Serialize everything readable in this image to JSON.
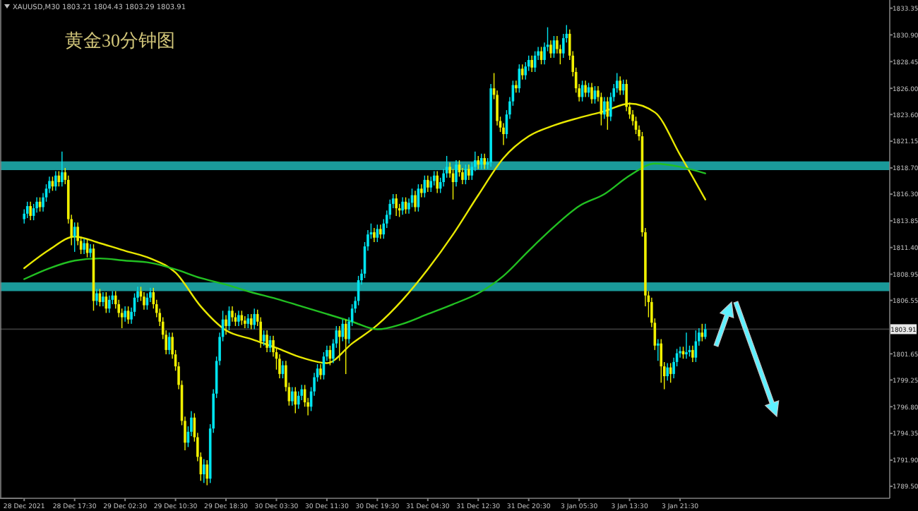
{
  "chart_data": {
    "type": "candlestick",
    "title": "黄金30分钟图",
    "subtitle": "XAUUSD,M30 1803.21 1804.43 1803.29 1803.91",
    "categories": [
      "28 Dec 2021",
      null,
      null,
      null,
      null,
      null,
      null,
      null,
      null,
      null,
      null,
      null,
      null,
      null,
      null,
      null,
      "28 Dec 17:30",
      null,
      null,
      null,
      null,
      null,
      null,
      null,
      null,
      null,
      null,
      null,
      null,
      null,
      null,
      null,
      "29 Dec 02:30",
      null,
      null,
      null,
      null,
      null,
      null,
      null,
      null,
      null,
      null,
      null,
      null,
      null,
      null,
      null,
      "29 Dec 10:30",
      null,
      null,
      null,
      null,
      null,
      null,
      null,
      null,
      null,
      null,
      null,
      null,
      null,
      null,
      null,
      "29 Dec 18:30",
      null,
      null,
      null,
      null,
      null,
      null,
      null,
      null,
      null,
      null,
      null,
      null,
      null,
      null,
      null,
      "30 Dec 03:30",
      null,
      null,
      null,
      null,
      null,
      null,
      null,
      null,
      null,
      null,
      null,
      null,
      null,
      null,
      null,
      "30 Dec 11:30",
      null,
      null,
      null,
      null,
      null,
      null,
      null,
      null,
      null,
      null,
      null,
      null,
      null,
      null,
      null,
      "30 Dec 19:30",
      null,
      null,
      null,
      null,
      null,
      null,
      null,
      null,
      null,
      null,
      null,
      null,
      null,
      null,
      null,
      "31 Dec 04:30",
      null,
      null,
      null,
      null,
      null,
      null,
      null,
      null,
      null,
      null,
      null,
      null,
      null,
      null,
      null,
      "31 Dec 12:30",
      null,
      null,
      null,
      null,
      null,
      null,
      null,
      null,
      null,
      null,
      null,
      null,
      null,
      null,
      null,
      "31 Dec 20:30",
      null,
      null,
      null,
      null,
      null,
      null,
      null,
      null,
      null,
      null,
      null,
      null,
      null,
      null,
      null,
      "3 Jan 05:30",
      null,
      null,
      null,
      null,
      null,
      null,
      null,
      null,
      null,
      null,
      null,
      null,
      null,
      null,
      null,
      "3 Jan 13:30",
      null,
      null,
      null,
      null,
      null,
      null,
      null,
      null,
      null,
      null,
      null,
      null,
      null,
      null,
      null,
      "3 Jan 21:30",
      null,
      null,
      null,
      null,
      null,
      null,
      null,
      null,
      null,
      null,
      null,
      null,
      null,
      null,
      null,
      null,
      null,
      null,
      null,
      null,
      null,
      null,
      null,
      null,
      null,
      null,
      null,
      null,
      null,
      null,
      null,
      null,
      null,
      null,
      null,
      null,
      null,
      null,
      null,
      null,
      null,
      null,
      null,
      null,
      null,
      null,
      null,
      null,
      null,
      null,
      null,
      null,
      null,
      null,
      null,
      null,
      null,
      null,
      null,
      null,
      null,
      null,
      null,
      null,
      null,
      null
    ],
    "ohlc": [
      [
        1814.0,
        1814.9,
        1813.6,
        1814.5
      ],
      [
        1814.5,
        1815.6,
        1814.1,
        1815.2
      ],
      [
        1815.2,
        1815.6,
        1813.9,
        1814.3
      ],
      [
        1814.3,
        1815.4,
        1813.9,
        1815.0
      ],
      [
        1815.0,
        1816.0,
        1814.6,
        1815.6
      ],
      [
        1815.6,
        1816.0,
        1814.7,
        1815.1
      ],
      [
        1815.1,
        1816.4,
        1814.7,
        1816.0
      ],
      [
        1816.0,
        1817.2,
        1815.6,
        1816.8
      ],
      [
        1816.8,
        1817.9,
        1816.4,
        1817.5
      ],
      [
        1817.5,
        1817.9,
        1816.6,
        1817.0
      ],
      [
        1817.0,
        1818.4,
        1816.6,
        1818.0
      ],
      [
        1818.0,
        1818.4,
        1817.0,
        1817.4
      ],
      [
        1817.4,
        1820.2,
        1817.0,
        1818.3
      ],
      [
        1818.3,
        1818.7,
        1817.2,
        1817.6
      ],
      [
        1817.6,
        1818.0,
        1813.6,
        1814.0
      ],
      [
        1814.0,
        1814.4,
        1811.6,
        1812.4
      ],
      [
        1812.4,
        1813.7,
        1811.0,
        1813.3
      ],
      [
        1813.3,
        1813.7,
        1811.6,
        1812.0
      ],
      [
        1812.0,
        1812.4,
        1810.8,
        1811.2
      ],
      [
        1811.2,
        1812.2,
        1810.8,
        1811.8
      ],
      [
        1811.8,
        1812.2,
        1810.5,
        1810.9
      ],
      [
        1810.9,
        1811.7,
        1810.5,
        1811.3
      ],
      [
        1811.3,
        1811.7,
        1805.6,
        1806.5
      ],
      [
        1806.5,
        1807.6,
        1806.1,
        1807.2
      ],
      [
        1807.2,
        1807.6,
        1806.0,
        1806.4
      ],
      [
        1806.4,
        1807.3,
        1806.0,
        1806.9
      ],
      [
        1806.9,
        1807.3,
        1805.4,
        1805.8
      ],
      [
        1805.8,
        1807.0,
        1805.4,
        1806.6
      ],
      [
        1806.6,
        1807.4,
        1806.2,
        1807.0
      ],
      [
        1807.0,
        1807.4,
        1805.8,
        1806.2
      ],
      [
        1806.2,
        1806.6,
        1805.0,
        1805.4
      ],
      [
        1805.4,
        1805.8,
        1804.0,
        1805.0
      ],
      [
        1805.0,
        1806.0,
        1804.6,
        1805.6
      ],
      [
        1805.6,
        1806.0,
        1804.4,
        1804.8
      ],
      [
        1804.8,
        1805.9,
        1804.4,
        1805.5
      ],
      [
        1805.5,
        1807.2,
        1805.1,
        1806.8
      ],
      [
        1806.8,
        1807.8,
        1806.4,
        1807.4
      ],
      [
        1807.4,
        1807.8,
        1806.5,
        1806.9
      ],
      [
        1806.9,
        1807.3,
        1805.7,
        1806.1
      ],
      [
        1806.1,
        1807.2,
        1805.7,
        1806.8
      ],
      [
        1806.8,
        1807.7,
        1806.4,
        1807.3
      ],
      [
        1807.3,
        1807.7,
        1805.8,
        1806.2
      ],
      [
        1806.2,
        1806.6,
        1805.0,
        1805.4
      ],
      [
        1805.4,
        1805.8,
        1804.2,
        1804.6
      ],
      [
        1804.6,
        1805.0,
        1803.0,
        1803.4
      ],
      [
        1803.4,
        1803.8,
        1801.6,
        1802.0
      ],
      [
        1802.0,
        1803.6,
        1801.6,
        1803.2
      ],
      [
        1803.2,
        1803.6,
        1801.2,
        1801.6
      ],
      [
        1801.6,
        1802.0,
        1800.1,
        1800.5
      ],
      [
        1800.5,
        1800.9,
        1798.4,
        1798.8
      ],
      [
        1798.8,
        1799.2,
        1795.1,
        1795.5
      ],
      [
        1795.5,
        1795.9,
        1792.8,
        1793.5
      ],
      [
        1793.5,
        1795.0,
        1793.1,
        1794.5
      ],
      [
        1794.5,
        1796.4,
        1794.1,
        1795.8
      ],
      [
        1795.8,
        1796.2,
        1793.6,
        1794.0
      ],
      [
        1794.0,
        1794.4,
        1791.8,
        1792.2
      ],
      [
        1792.2,
        1792.6,
        1790.0,
        1790.6
      ],
      [
        1790.6,
        1792.0,
        1789.8,
        1791.5
      ],
      [
        1791.5,
        1791.9,
        1789.6,
        1790.2
      ],
      [
        1790.2,
        1795.2,
        1789.8,
        1794.8
      ],
      [
        1794.8,
        1798.4,
        1794.4,
        1798.0
      ],
      [
        1798.0,
        1801.4,
        1797.6,
        1801.0
      ],
      [
        1801.0,
        1803.6,
        1800.6,
        1803.2
      ],
      [
        1803.2,
        1805.6,
        1802.8,
        1804.8
      ],
      [
        1804.8,
        1805.2,
        1803.4,
        1804.2
      ],
      [
        1804.2,
        1806.0,
        1803.8,
        1805.6
      ],
      [
        1805.6,
        1806.0,
        1804.6,
        1805.0
      ],
      [
        1805.0,
        1805.4,
        1804.2,
        1804.6
      ],
      [
        1804.6,
        1805.6,
        1804.2,
        1805.2
      ],
      [
        1805.2,
        1805.6,
        1804.3,
        1804.7
      ],
      [
        1804.7,
        1805.1,
        1804.0,
        1804.4
      ],
      [
        1804.4,
        1805.3,
        1804.0,
        1804.9
      ],
      [
        1804.9,
        1805.3,
        1803.9,
        1804.3
      ],
      [
        1804.3,
        1805.8,
        1803.9,
        1805.3
      ],
      [
        1805.3,
        1805.7,
        1804.2,
        1804.6
      ],
      [
        1804.6,
        1805.0,
        1802.2,
        1802.8
      ],
      [
        1802.8,
        1803.8,
        1802.4,
        1803.4
      ],
      [
        1803.4,
        1803.8,
        1801.8,
        1802.2
      ],
      [
        1802.2,
        1803.3,
        1801.8,
        1802.9
      ],
      [
        1802.9,
        1803.3,
        1801.4,
        1801.8
      ],
      [
        1801.8,
        1802.2,
        1800.2,
        1801.2
      ],
      [
        1801.2,
        1801.6,
        1799.4,
        1799.8
      ],
      [
        1799.8,
        1801.0,
        1799.4,
        1800.6
      ],
      [
        1800.6,
        1801.0,
        1798.2,
        1798.6
      ],
      [
        1798.6,
        1799.0,
        1796.9,
        1797.3
      ],
      [
        1797.3,
        1798.6,
        1796.9,
        1798.2
      ],
      [
        1798.2,
        1798.6,
        1796.2,
        1797.0
      ],
      [
        1797.0,
        1798.2,
        1796.6,
        1797.8
      ],
      [
        1797.8,
        1798.8,
        1797.4,
        1798.4
      ],
      [
        1798.4,
        1798.8,
        1796.8,
        1797.2
      ],
      [
        1797.2,
        1797.6,
        1796.0,
        1796.8
      ],
      [
        1796.8,
        1798.6,
        1796.4,
        1798.2
      ],
      [
        1798.2,
        1799.9,
        1797.8,
        1799.5
      ],
      [
        1799.5,
        1800.7,
        1799.1,
        1800.3
      ],
      [
        1800.3,
        1800.7,
        1799.3,
        1799.7
      ],
      [
        1799.7,
        1801.8,
        1799.3,
        1801.4
      ],
      [
        1801.4,
        1802.4,
        1801.0,
        1802.0
      ],
      [
        1802.0,
        1802.4,
        1800.6,
        1801.2
      ],
      [
        1801.2,
        1803.0,
        1800.8,
        1802.6
      ],
      [
        1802.6,
        1804.2,
        1802.2,
        1803.8
      ],
      [
        1803.8,
        1804.2,
        1801.0,
        1803.2
      ],
      [
        1803.2,
        1804.8,
        1802.8,
        1804.4
      ],
      [
        1804.4,
        1804.8,
        1799.8,
        1803.0
      ],
      [
        1803.0,
        1805.0,
        1802.6,
        1804.6
      ],
      [
        1804.6,
        1806.2,
        1804.2,
        1805.8
      ],
      [
        1805.8,
        1806.9,
        1805.4,
        1806.5
      ],
      [
        1806.5,
        1808.8,
        1806.1,
        1808.4
      ],
      [
        1808.4,
        1809.4,
        1808.0,
        1809.0
      ],
      [
        1809.0,
        1811.9,
        1808.6,
        1811.5
      ],
      [
        1811.5,
        1813.0,
        1811.1,
        1812.6
      ],
      [
        1812.6,
        1813.6,
        1812.2,
        1812.8
      ],
      [
        1812.8,
        1813.2,
        1811.9,
        1812.3
      ],
      [
        1812.3,
        1813.5,
        1811.9,
        1813.1
      ],
      [
        1813.1,
        1813.5,
        1812.2,
        1812.6
      ],
      [
        1812.6,
        1814.0,
        1812.2,
        1813.6
      ],
      [
        1813.6,
        1814.8,
        1813.2,
        1814.4
      ],
      [
        1814.4,
        1815.8,
        1814.0,
        1815.4
      ],
      [
        1815.4,
        1816.3,
        1815.0,
        1815.9
      ],
      [
        1815.9,
        1816.3,
        1814.3,
        1815.0
      ],
      [
        1815.0,
        1815.4,
        1814.2,
        1814.8
      ],
      [
        1814.8,
        1816.0,
        1814.4,
        1815.6
      ],
      [
        1815.6,
        1816.0,
        1814.5,
        1814.9
      ],
      [
        1814.9,
        1815.9,
        1814.5,
        1815.5
      ],
      [
        1815.5,
        1816.8,
        1815.1,
        1816.2
      ],
      [
        1816.2,
        1816.6,
        1814.7,
        1815.1
      ],
      [
        1815.1,
        1817.2,
        1814.7,
        1816.8
      ],
      [
        1816.8,
        1817.2,
        1816.0,
        1816.4
      ],
      [
        1816.4,
        1818.0,
        1816.0,
        1817.6
      ],
      [
        1817.6,
        1818.0,
        1816.5,
        1816.9
      ],
      [
        1816.9,
        1817.9,
        1816.5,
        1817.5
      ],
      [
        1817.5,
        1818.4,
        1817.1,
        1818.0
      ],
      [
        1818.0,
        1818.4,
        1816.4,
        1816.8
      ],
      [
        1816.8,
        1817.8,
        1816.4,
        1817.4
      ],
      [
        1817.4,
        1818.6,
        1817.0,
        1818.2
      ],
      [
        1818.2,
        1819.8,
        1817.8,
        1818.8
      ],
      [
        1818.8,
        1819.2,
        1817.8,
        1818.2
      ],
      [
        1818.2,
        1818.6,
        1815.8,
        1817.4
      ],
      [
        1817.4,
        1819.4,
        1817.0,
        1819.0
      ],
      [
        1819.0,
        1819.4,
        1817.9,
        1818.3
      ],
      [
        1818.3,
        1818.7,
        1817.2,
        1817.6
      ],
      [
        1817.6,
        1819.0,
        1817.2,
        1818.6
      ],
      [
        1818.6,
        1819.0,
        1817.6,
        1818.0
      ],
      [
        1818.0,
        1819.2,
        1817.6,
        1818.8
      ],
      [
        1818.8,
        1820.2,
        1818.4,
        1819.4
      ],
      [
        1819.4,
        1819.8,
        1818.6,
        1819.0
      ],
      [
        1819.0,
        1820.0,
        1818.6,
        1819.6
      ],
      [
        1819.6,
        1820.0,
        1818.6,
        1819.0
      ],
      [
        1819.0,
        1819.6,
        1818.6,
        1819.2
      ],
      [
        1819.2,
        1826.4,
        1818.8,
        1826.0
      ],
      [
        1826.0,
        1827.4,
        1825.0,
        1825.4
      ],
      [
        1825.4,
        1825.8,
        1822.6,
        1823.0
      ],
      [
        1823.0,
        1823.4,
        1822.0,
        1822.4
      ],
      [
        1822.4,
        1822.8,
        1820.8,
        1821.8
      ],
      [
        1821.8,
        1824.0,
        1821.4,
        1823.6
      ],
      [
        1823.6,
        1825.2,
        1823.2,
        1824.8
      ],
      [
        1824.8,
        1826.7,
        1824.4,
        1826.3
      ],
      [
        1826.3,
        1826.7,
        1825.6,
        1826.0
      ],
      [
        1826.0,
        1828.2,
        1825.6,
        1827.8
      ],
      [
        1827.8,
        1828.2,
        1826.8,
        1827.2
      ],
      [
        1827.2,
        1828.4,
        1826.8,
        1828.0
      ],
      [
        1828.0,
        1829.0,
        1827.6,
        1828.6
      ],
      [
        1828.6,
        1829.0,
        1827.5,
        1827.9
      ],
      [
        1827.9,
        1829.4,
        1827.5,
        1829.0
      ],
      [
        1829.0,
        1829.8,
        1828.6,
        1829.4
      ],
      [
        1829.4,
        1829.8,
        1828.2,
        1828.6
      ],
      [
        1828.6,
        1830.2,
        1828.2,
        1829.8
      ],
      [
        1829.8,
        1831.6,
        1829.4,
        1830.0
      ],
      [
        1830.0,
        1830.4,
        1828.8,
        1829.2
      ],
      [
        1829.2,
        1830.8,
        1828.8,
        1830.4
      ],
      [
        1830.4,
        1830.8,
        1829.2,
        1829.6
      ],
      [
        1829.6,
        1830.0,
        1828.2,
        1829.2
      ],
      [
        1829.2,
        1831.0,
        1828.8,
        1830.6
      ],
      [
        1830.6,
        1831.8,
        1830.2,
        1831.0
      ],
      [
        1831.0,
        1831.4,
        1828.6,
        1829.0
      ],
      [
        1829.0,
        1829.4,
        1827.1,
        1827.5
      ],
      [
        1827.5,
        1827.9,
        1825.6,
        1826.0
      ],
      [
        1826.0,
        1826.4,
        1824.8,
        1825.2
      ],
      [
        1825.2,
        1826.7,
        1824.8,
        1826.3
      ],
      [
        1826.3,
        1826.7,
        1825.2,
        1825.6
      ],
      [
        1825.6,
        1826.5,
        1825.2,
        1826.1
      ],
      [
        1826.1,
        1826.5,
        1824.6,
        1825.0
      ],
      [
        1825.0,
        1826.2,
        1824.6,
        1825.8
      ],
      [
        1825.8,
        1826.2,
        1824.8,
        1825.2
      ],
      [
        1825.2,
        1825.6,
        1822.6,
        1823.6
      ],
      [
        1823.6,
        1825.2,
        1823.2,
        1824.8
      ],
      [
        1824.8,
        1825.2,
        1822.2,
        1823.4
      ],
      [
        1823.4,
        1825.6,
        1823.0,
        1825.2
      ],
      [
        1825.2,
        1826.4,
        1824.8,
        1826.0
      ],
      [
        1826.0,
        1827.4,
        1825.6,
        1826.7
      ],
      [
        1826.7,
        1827.1,
        1825.4,
        1825.8
      ],
      [
        1825.8,
        1826.8,
        1825.4,
        1826.4
      ],
      [
        1826.4,
        1826.8,
        1823.9,
        1824.3
      ],
      [
        1824.3,
        1824.7,
        1823.2,
        1823.6
      ],
      [
        1823.6,
        1824.0,
        1822.6,
        1823.0
      ],
      [
        1823.0,
        1823.4,
        1821.8,
        1822.2
      ],
      [
        1822.2,
        1822.6,
        1821.2,
        1821.6
      ],
      [
        1821.6,
        1822.0,
        1812.4,
        1812.8
      ],
      [
        1812.8,
        1813.2,
        1806.0,
        1807.0
      ],
      [
        1807.0,
        1807.4,
        1805.0,
        1806.4
      ],
      [
        1806.4,
        1806.8,
        1804.1,
        1804.5
      ],
      [
        1804.5,
        1804.9,
        1802.0,
        1802.4
      ],
      [
        1802.4,
        1803.0,
        1801.0,
        1802.6
      ],
      [
        1802.6,
        1803.0,
        1799.0,
        1800.5
      ],
      [
        1800.5,
        1800.9,
        1798.4,
        1799.6
      ],
      [
        1799.6,
        1800.8,
        1799.2,
        1800.4
      ],
      [
        1800.4,
        1800.8,
        1799.0,
        1799.8
      ],
      [
        1799.8,
        1801.3,
        1799.4,
        1800.9
      ],
      [
        1800.9,
        1802.1,
        1800.5,
        1801.7
      ],
      [
        1801.7,
        1802.3,
        1801.3,
        1801.9
      ],
      [
        1801.9,
        1802.3,
        1801.2,
        1801.6
      ],
      [
        1801.6,
        1803.6,
        1801.2,
        1801.8
      ],
      [
        1801.8,
        1802.4,
        1801.4,
        1802.0
      ],
      [
        1802.0,
        1802.4,
        1800.9,
        1801.3
      ],
      [
        1801.3,
        1803.8,
        1800.9,
        1802.8
      ],
      [
        1802.8,
        1804.0,
        1802.4,
        1803.6
      ],
      [
        1803.6,
        1804.4,
        1802.8,
        1803.2
      ],
      [
        1803.2,
        1804.4,
        1803.0,
        1803.91
      ],
      null,
      null,
      null,
      null,
      null,
      null,
      null,
      null,
      null,
      null,
      null,
      null,
      null,
      null,
      null,
      null,
      null,
      null,
      null,
      null,
      null,
      null,
      null,
      null,
      null,
      null,
      null,
      null,
      null,
      null,
      null,
      null,
      null,
      null,
      null,
      null,
      null,
      null,
      null,
      null,
      null,
      null,
      null,
      null,
      null,
      null,
      null,
      null,
      null,
      null,
      null,
      null,
      null,
      null,
      null,
      null,
      null,
      null
    ],
    "colors": [
      "#00e5f0",
      "#00e5f0",
      "#f0f000",
      "#00e5f0",
      "#00e5f0",
      "#f0f000",
      "#00e5f0",
      "#00e5f0",
      "#00e5f0",
      "#f0f000",
      "#00e5f0",
      "#f0f000",
      "#00e5f0",
      "#f0f000",
      "#f0f000",
      "#f0f000",
      "#00e5f0",
      "#f0f000",
      "#f0f000",
      "#00e5f0",
      "#f0f000",
      "#00e5f0",
      "#f0f000",
      "#00e5f0",
      "#f0f000",
      "#00e5f0",
      "#f0f000",
      "#00e5f0",
      "#00e5f0",
      "#f0f000",
      "#f0f000",
      "#f0f000",
      "#00e5f0",
      "#f0f000",
      "#00e5f0",
      "#00e5f0",
      "#00e5f0",
      "#f0f000",
      "#f0f000",
      "#00e5f0",
      "#00e5f0",
      "#f0f000",
      "#f0f000",
      "#f0f000",
      "#f0f000",
      "#f0f000",
      "#00e5f0",
      "#f0f000",
      "#f0f000",
      "#f0f000",
      "#f0f000",
      "#f0f000",
      "#00e5f0",
      "#00e5f0",
      "#f0f000",
      "#f0f000",
      "#f0f000",
      "#00e5f0",
      "#f0f000",
      "#00e5f0",
      "#00e5f0",
      "#00e5f0",
      "#00e5f0",
      "#00e5f0",
      "#f0f000",
      "#00e5f0",
      "#f0f000",
      "#f0f000",
      "#00e5f0",
      "#f0f000",
      "#f0f000",
      "#00e5f0",
      "#f0f000",
      "#00e5f0",
      "#f0f000",
      "#f0f000",
      "#00e5f0",
      "#f0f000",
      "#00e5f0",
      "#f0f000",
      "#f0f000",
      "#f0f000",
      "#00e5f0",
      "#f0f000",
      "#f0f000",
      "#00e5f0",
      "#f0f000",
      "#00e5f0",
      "#00e5f0",
      "#f0f000",
      "#f0f000",
      "#00e5f0",
      "#00e5f0",
      "#00e5f0",
      "#f0f000",
      "#00e5f0",
      "#00e5f0",
      "#f0f000",
      "#00e5f0",
      "#00e5f0",
      "#f0f000",
      "#00e5f0",
      "#f0f000",
      "#00e5f0",
      "#00e5f0",
      "#00e5f0",
      "#00e5f0",
      "#00e5f0",
      "#00e5f0",
      "#00e5f0",
      "#00e5f0",
      "#f0f000",
      "#00e5f0",
      "#f0f000",
      "#00e5f0",
      "#00e5f0",
      "#00e5f0",
      "#00e5f0",
      "#f0f000",
      "#f0f000",
      "#00e5f0",
      "#f0f000",
      "#00e5f0",
      "#00e5f0",
      "#f0f000",
      "#00e5f0",
      "#f0f000",
      "#00e5f0",
      "#f0f000",
      "#00e5f0",
      "#00e5f0",
      "#f0f000",
      "#00e5f0",
      "#00e5f0",
      "#00e5f0",
      "#f0f000",
      "#f0f000",
      "#00e5f0",
      "#f0f000",
      "#f0f000",
      "#00e5f0",
      "#f0f000",
      "#00e5f0",
      "#00e5f0",
      "#f0f000",
      "#00e5f0",
      "#f0f000",
      "#00e5f0",
      "#00e5f0",
      "#f0f000",
      "#f0f000",
      "#f0f000",
      "#f0f000",
      "#00e5f0",
      "#00e5f0",
      "#00e5f0",
      "#f0f000",
      "#00e5f0",
      "#f0f000",
      "#00e5f0",
      "#00e5f0",
      "#f0f000",
      "#00e5f0",
      "#00e5f0",
      "#f0f000",
      "#00e5f0",
      "#00e5f0",
      "#f0f000",
      "#00e5f0",
      "#f0f000",
      "#f0f000",
      "#00e5f0",
      "#00e5f0",
      "#f0f000",
      "#f0f000",
      "#f0f000",
      "#f0f000",
      "#00e5f0",
      "#f0f000",
      "#00e5f0",
      "#f0f000",
      "#00e5f0",
      "#f0f000",
      "#f0f000",
      "#00e5f0",
      "#f0f000",
      "#00e5f0",
      "#00e5f0",
      "#00e5f0",
      "#f0f000",
      "#00e5f0",
      "#f0f000",
      "#f0f000",
      "#f0f000",
      "#f0f000",
      "#f0f000",
      "#f0f000",
      "#f0f000",
      "#f0f000",
      "#f0f000",
      "#f0f000",
      "#00e5f0",
      "#f0f000",
      "#f0f000",
      "#00e5f0",
      "#f0f000",
      "#00e5f0",
      "#00e5f0",
      "#00e5f0",
      "#f0f000",
      "#00e5f0",
      "#00e5f0",
      "#f0f000",
      "#00e5f0",
      "#00e5f0",
      "#f0f000",
      "#00e5f0",
      null,
      null,
      null,
      null,
      null,
      null,
      null,
      null,
      null,
      null,
      null,
      null,
      null,
      null,
      null,
      null,
      null,
      null,
      null,
      null,
      null,
      null,
      null,
      null,
      null,
      null,
      null,
      null,
      null,
      null,
      null,
      null,
      null,
      null,
      null,
      null,
      null,
      null,
      null,
      null,
      null,
      null,
      null,
      null,
      null,
      null,
      null,
      null,
      null,
      null,
      null,
      null,
      null,
      null,
      null,
      null,
      null,
      null
    ],
    "series": [
      {
        "type": "line",
        "color": "#e8e800",
        "values": [
          1809.5,
          null,
          null,
          null,
          null,
          null,
          null,
          null,
          1811.2,
          null,
          null,
          null,
          null,
          null,
          null,
          null,
          1812.4,
          null,
          null,
          null,
          null,
          null,
          null,
          null,
          1811.8,
          null,
          null,
          null,
          null,
          null,
          null,
          null,
          1811.1,
          null,
          null,
          null,
          null,
          null,
          null,
          null,
          1810.4,
          null,
          null,
          null,
          null,
          null,
          null,
          null,
          1809.1,
          null,
          null,
          null,
          null,
          null,
          null,
          null,
          1806.0,
          null,
          null,
          null,
          null,
          null,
          null,
          null,
          1803.8,
          null,
          null,
          null,
          null,
          null,
          null,
          null,
          1803.0,
          null,
          null,
          null,
          null,
          null,
          null,
          null,
          1802.2,
          null,
          null,
          null,
          null,
          null,
          null,
          null,
          1801.3,
          null,
          null,
          null,
          null,
          null,
          null,
          null,
          1800.8,
          null,
          null,
          null,
          null,
          null,
          null,
          null,
          1802.6,
          null,
          null,
          null,
          null,
          null,
          null,
          null,
          1804.3,
          null,
          null,
          null,
          null,
          null,
          null,
          null,
          1806.6,
          null,
          null,
          null,
          null,
          null,
          null,
          null,
          1809.4,
          null,
          null,
          null,
          null,
          null,
          null,
          null,
          1812.6,
          null,
          null,
          null,
          null,
          null,
          null,
          null,
          1816.2,
          null,
          null,
          null,
          null,
          null,
          null,
          null,
          1819.6,
          null,
          null,
          null,
          null,
          null,
          null,
          null,
          1821.6,
          null,
          null,
          null,
          null,
          null,
          null,
          null,
          1822.6,
          null,
          null,
          null,
          null,
          null,
          null,
          null,
          1823.3,
          null,
          null,
          null,
          null,
          null,
          null,
          null,
          1823.9,
          null,
          null,
          null,
          null,
          null,
          null,
          null,
          1824.6,
          null,
          null,
          null,
          null,
          null,
          null,
          null,
          1823.8,
          null,
          null,
          null,
          null,
          null,
          null,
          null,
          1819.9,
          null,
          null,
          null,
          null,
          null,
          null,
          null,
          1815.8,
          null,
          null,
          null,
          null,
          null,
          null,
          null,
          null,
          null,
          null,
          null,
          null,
          null,
          null,
          null,
          null,
          null,
          null,
          null,
          null,
          null,
          null,
          null,
          null,
          null,
          null,
          null,
          null,
          null,
          null,
          null,
          null,
          null,
          null,
          null,
          null,
          null,
          null,
          null,
          null,
          null,
          null,
          null,
          null,
          null,
          null,
          null,
          null,
          null,
          null,
          null,
          null,
          null,
          null,
          null,
          null,
          null,
          null
        ]
      },
      {
        "type": "line",
        "color": "#22c022",
        "values": [
          1808.5,
          null,
          null,
          null,
          null,
          null,
          null,
          null,
          1809.5,
          null,
          null,
          null,
          null,
          null,
          null,
          null,
          1810.2,
          null,
          null,
          null,
          null,
          null,
          null,
          null,
          1810.4,
          null,
          null,
          null,
          null,
          null,
          null,
          null,
          1810.2,
          null,
          null,
          null,
          null,
          null,
          null,
          null,
          1810.0,
          null,
          null,
          null,
          null,
          null,
          null,
          null,
          1809.4,
          null,
          null,
          null,
          null,
          null,
          null,
          null,
          1808.6,
          null,
          null,
          null,
          null,
          null,
          null,
          null,
          1808.0,
          null,
          null,
          null,
          null,
          null,
          null,
          null,
          1807.3,
          null,
          null,
          null,
          null,
          null,
          null,
          null,
          1806.7,
          null,
          null,
          null,
          null,
          null,
          null,
          null,
          1806.0,
          null,
          null,
          null,
          null,
          null,
          null,
          null,
          1805.3,
          null,
          null,
          null,
          null,
          null,
          null,
          null,
          1804.6,
          null,
          null,
          null,
          null,
          null,
          null,
          null,
          1803.9,
          null,
          null,
          null,
          null,
          null,
          null,
          null,
          1804.4,
          null,
          null,
          null,
          null,
          null,
          null,
          null,
          1805.3,
          null,
          null,
          null,
          null,
          null,
          null,
          null,
          1806.2,
          null,
          null,
          null,
          null,
          null,
          null,
          null,
          1807.2,
          null,
          null,
          null,
          null,
          null,
          null,
          null,
          1808.8,
          null,
          null,
          null,
          null,
          null,
          null,
          null,
          1811.1,
          null,
          null,
          null,
          null,
          null,
          null,
          null,
          1813.3,
          null,
          null,
          null,
          null,
          null,
          null,
          null,
          1815.2,
          null,
          null,
          null,
          null,
          null,
          null,
          null,
          1816.3,
          null,
          null,
          null,
          null,
          null,
          null,
          null,
          1818.0,
          null,
          null,
          null,
          null,
          null,
          null,
          null,
          1819.1,
          null,
          null,
          null,
          null,
          null,
          null,
          null,
          1818.8,
          null,
          null,
          null,
          null,
          null,
          null,
          null,
          1818.2,
          null,
          null,
          null,
          null,
          null,
          null,
          null,
          null,
          null,
          null,
          null,
          null,
          null,
          null,
          null,
          null,
          null,
          null,
          null,
          null,
          null,
          null,
          null,
          null,
          null,
          null,
          null,
          null,
          null,
          null,
          null,
          null,
          null,
          null,
          null,
          null,
          null,
          null,
          null,
          null,
          null,
          null,
          null,
          null,
          null,
          null,
          null,
          null,
          null,
          null,
          null,
          null,
          null,
          null,
          null,
          null,
          null,
          null
        ]
      }
    ],
    "bands": [
      {
        "axis": "y",
        "from": 1818.5,
        "to": 1819.3,
        "color": "#1a9a9a"
      },
      {
        "axis": "y",
        "from": 1807.4,
        "to": 1808.2,
        "color": "#1a9a9a"
      }
    ],
    "ref_lines": [
      {
        "axis": "y",
        "value": 1803.91,
        "label": "1803.91",
        "color": "#3a3a3a"
      }
    ],
    "ylim": [
      1788.4,
      1834.1
    ],
    "yticks": [
      1833.35,
      {
        "value": 1830.9,
        "label": "1830.90"
      },
      1828.45,
      {
        "value": 1826,
        "label": "1826.00"
      },
      {
        "value": 1823.6,
        "label": "1823.60"
      },
      1821.15,
      {
        "value": 1818.7,
        "label": "1818.70"
      },
      {
        "value": 1816.3,
        "label": "1816.30"
      },
      1813.85,
      {
        "value": 1811.4,
        "label": "1811.40"
      },
      1808.95,
      1806.55,
      1801.65,
      1799.25,
      {
        "value": 1796.8,
        "label": "1796.80"
      },
      1794.35,
      {
        "value": 1791.9,
        "label": "1791.90"
      },
      {
        "value": 1789.5,
        "label": "1789.50"
      }
    ],
    "tick_labels": [
      "x",
      "y"
    ]
  }
}
